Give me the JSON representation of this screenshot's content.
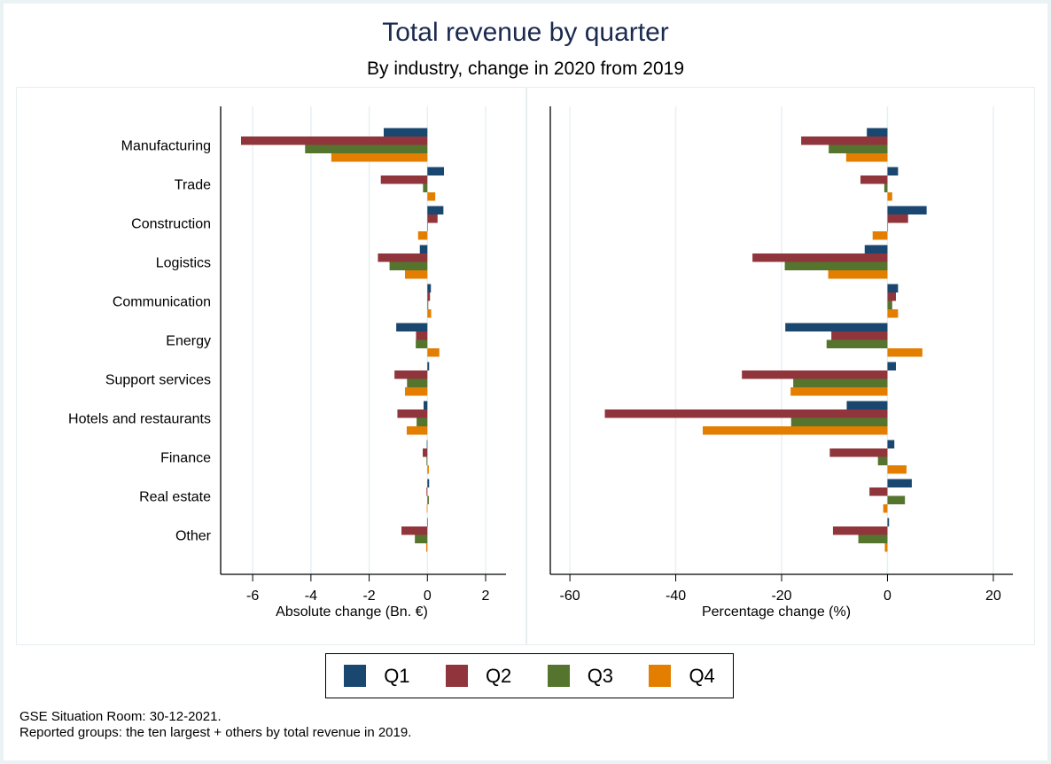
{
  "title": "Total revenue by quarter",
  "subtitle": "By industry, change in 2020 from 2019",
  "legend": [
    {
      "label": "Q1",
      "color": "#1a476f"
    },
    {
      "label": "Q2",
      "color": "#90353b"
    },
    {
      "label": "Q3",
      "color": "#55752f"
    },
    {
      "label": "Q4",
      "color": "#e37e00"
    }
  ],
  "notes": [
    "GSE Situation Room: 30-12-2021.",
    "Reported groups: the ten largest + others by total revenue in 2019."
  ],
  "chart_data": [
    {
      "type": "bar",
      "orientation": "horizontal",
      "title": "",
      "xlabel": "Absolute change (Bn. €)",
      "ylabel": "",
      "xlim": [
        -7.1,
        2.7
      ],
      "xticks": [
        -6,
        -4,
        -2,
        0,
        2
      ],
      "xtick_labels": [
        "-6",
        "-4",
        "-2",
        "0",
        "2"
      ],
      "grid": true,
      "legend_position": "bottom",
      "categories": [
        "Manufacturing",
        "Trade",
        "Construction",
        "Logistics",
        "Communication",
        "Energy",
        "Support services",
        "Hotels and restaurants",
        "Finance",
        "Real estate",
        "Other"
      ],
      "series": [
        {
          "name": "Q1",
          "values": [
            -1.5,
            0.57,
            0.55,
            -0.26,
            0.12,
            -1.07,
            0.06,
            -0.13,
            -0.02,
            0.06,
            -0.01
          ]
        },
        {
          "name": "Q2",
          "values": [
            -6.4,
            -1.6,
            0.35,
            -1.7,
            0.09,
            -0.39,
            -1.13,
            -1.03,
            -0.16,
            -0.03,
            -0.89
          ]
        },
        {
          "name": "Q3",
          "values": [
            -4.2,
            -0.15,
            0.0,
            -1.3,
            0.03,
            -0.4,
            -0.7,
            -0.37,
            -0.03,
            0.05,
            -0.43
          ]
        },
        {
          "name": "Q4",
          "values": [
            -3.3,
            0.27,
            -0.32,
            -0.77,
            0.13,
            0.41,
            -0.77,
            -0.71,
            0.05,
            -0.02,
            -0.04
          ]
        }
      ]
    },
    {
      "type": "bar",
      "orientation": "horizontal",
      "title": "",
      "xlabel": "Percentage change (%)",
      "ylabel": "",
      "xlim": [
        -63.7,
        23.7
      ],
      "xticks": [
        -60,
        -40,
        -20,
        0,
        20
      ],
      "xtick_labels": [
        "-60",
        "-40",
        "-20",
        "0",
        "20"
      ],
      "grid": true,
      "legend_position": "bottom",
      "categories": [
        "Manufacturing",
        "Trade",
        "Construction",
        "Logistics",
        "Communication",
        "Energy",
        "Support services",
        "Hotels and restaurants",
        "Finance",
        "Real estate",
        "Other"
      ],
      "series": [
        {
          "name": "Q1",
          "values": [
            -3.9,
            2.0,
            7.4,
            -4.3,
            2.0,
            -19.3,
            1.6,
            -7.7,
            1.3,
            4.6,
            0.3
          ]
        },
        {
          "name": "Q2",
          "values": [
            -16.3,
            -5.1,
            3.9,
            -25.5,
            1.6,
            -10.6,
            -27.5,
            -53.4,
            -10.9,
            -3.4,
            -10.3
          ]
        },
        {
          "name": "Q3",
          "values": [
            -11.1,
            -0.6,
            0.0,
            -19.4,
            0.9,
            -11.5,
            -17.8,
            -18.2,
            -1.8,
            3.3,
            -5.5
          ]
        },
        {
          "name": "Q4",
          "values": [
            -7.8,
            0.9,
            -2.8,
            -11.2,
            2.0,
            6.6,
            -18.3,
            -34.9,
            3.6,
            -0.8,
            -0.5
          ]
        }
      ]
    }
  ]
}
